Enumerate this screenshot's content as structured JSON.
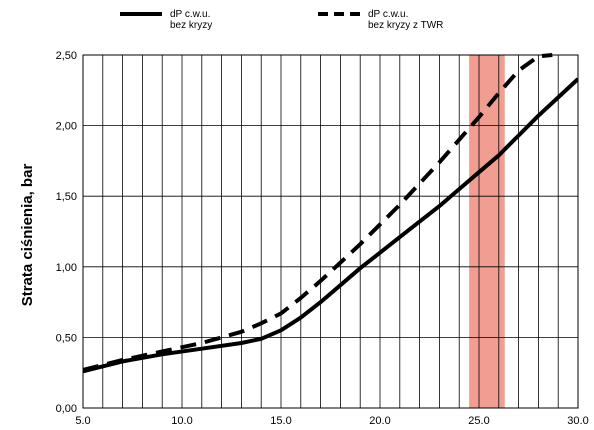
{
  "chart_data": {
    "type": "line",
    "title": "",
    "xlabel": "",
    "ylabel": "Strata ciśnienia, bar",
    "xlim": [
      5.0,
      30.0
    ],
    "ylim": [
      0.0,
      2.5
    ],
    "x_ticks": [
      "5.0",
      "10.0",
      "15.0",
      "20.0",
      "25.0",
      "30.0"
    ],
    "y_ticks": [
      "0,00",
      "0,50",
      "1,00",
      "1,50",
      "2,00",
      "2,50"
    ],
    "x_tick_values": [
      5,
      10,
      15,
      20,
      25,
      30
    ],
    "y_tick_values": [
      0,
      0.5,
      1.0,
      1.5,
      2.0,
      2.5
    ],
    "grid": true,
    "grid_x_step": 1,
    "grid_y_step": 0.5,
    "legend_position": "top",
    "series": [
      {
        "name": "dP c.w.u. bez kryzy",
        "legend_lines": [
          "dP c.w.u.",
          "bez kryzy"
        ],
        "style": "solid",
        "color": "#000000",
        "x": [
          5.0,
          7.0,
          9.0,
          11.0,
          13.0,
          14.0,
          15.0,
          16.0,
          17.0,
          18.0,
          19.0,
          20.0,
          21.0,
          22.0,
          23.0,
          24.0,
          25.0,
          26.0,
          27.0,
          28.0,
          29.0,
          30.0
        ],
        "values": [
          0.26,
          0.33,
          0.38,
          0.42,
          0.46,
          0.49,
          0.55,
          0.64,
          0.75,
          0.87,
          0.99,
          1.1,
          1.21,
          1.32,
          1.43,
          1.55,
          1.67,
          1.79,
          1.93,
          2.07,
          2.2,
          2.33
        ]
      },
      {
        "name": "dP c.w.u. bez kryzy z TWR",
        "legend_lines": [
          "dP c.w.u.",
          "bez kryzy z TWR"
        ],
        "style": "dashed",
        "color": "#000000",
        "x": [
          5.0,
          7.0,
          9.0,
          11.0,
          13.0,
          14.0,
          15.0,
          16.0,
          17.0,
          18.0,
          19.0,
          20.0,
          21.0,
          22.0,
          23.0,
          24.0,
          25.0,
          26.0,
          27.0,
          28.0,
          28.7
        ],
        "values": [
          0.27,
          0.34,
          0.4,
          0.46,
          0.54,
          0.6,
          0.67,
          0.78,
          0.9,
          1.03,
          1.16,
          1.3,
          1.44,
          1.59,
          1.74,
          1.9,
          2.06,
          2.23,
          2.39,
          2.49,
          2.5
        ]
      }
    ],
    "highlight_band": {
      "x_from": 24.5,
      "x_to": 26.3,
      "color": "#f08c7e"
    }
  }
}
